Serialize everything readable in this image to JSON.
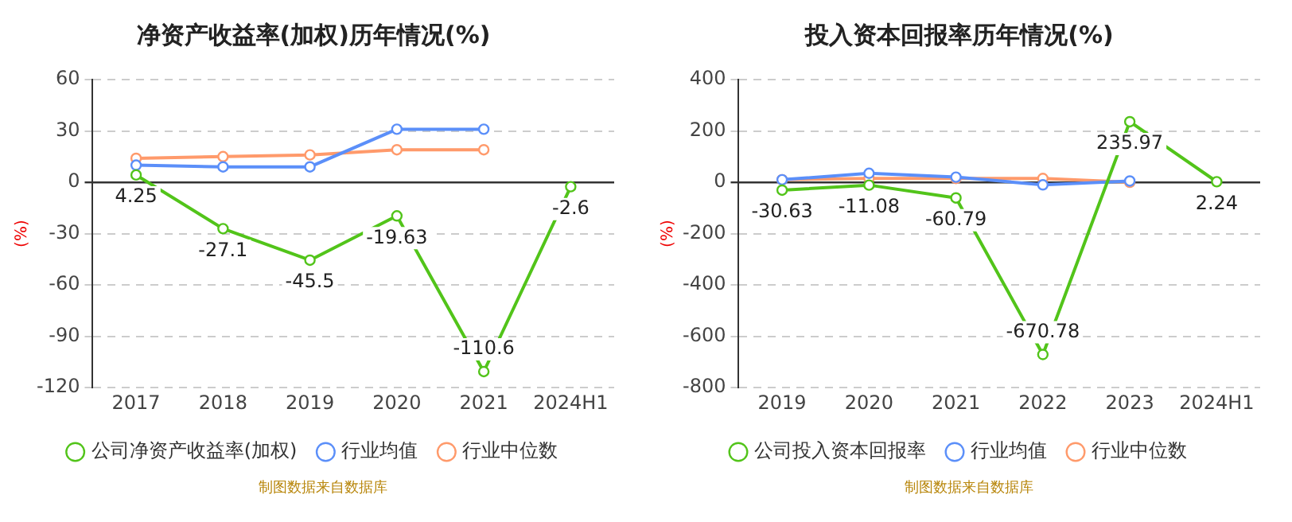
{
  "chart_data": [
    {
      "type": "line",
      "title": "净资产收益率(加权)历年情况(%)",
      "ylabel": "(%)",
      "categories": [
        "2017",
        "2018",
        "2019",
        "2020",
        "2021",
        "2024H1"
      ],
      "series": [
        {
          "name": "公司净资产收益率(加权)",
          "color": "#52c41a",
          "values": [
            4.25,
            -27.1,
            -45.5,
            -19.63,
            -110.6,
            -2.6
          ],
          "value_labels": [
            "4.25",
            "-27.1",
            "-45.5",
            "-19.63",
            "-110.6",
            "-2.6"
          ]
        },
        {
          "name": "行业均值",
          "color": "#5b8ff9",
          "values": [
            10,
            9,
            9,
            31,
            31,
            null
          ]
        },
        {
          "name": "行业中位数",
          "color": "#ff9a6b",
          "values": [
            14,
            15,
            16,
            19,
            19,
            null
          ]
        }
      ],
      "ylim": [
        -120,
        60
      ],
      "yticks": [
        -120,
        -90,
        -60,
        -30,
        0,
        30,
        60
      ],
      "grid": "y",
      "legend": "bottom",
      "marker": "circle",
      "annotations": [
        "制图数据来自数据库"
      ]
    },
    {
      "type": "line",
      "title": "投入资本回报率历年情况(%)",
      "ylabel": "(%)",
      "categories": [
        "2019",
        "2020",
        "2021",
        "2022",
        "2023",
        "2024H1"
      ],
      "series": [
        {
          "name": "公司投入资本回报率",
          "color": "#52c41a",
          "values": [
            -30.63,
            -11.08,
            -60.79,
            -670.78,
            235.97,
            2.24
          ],
          "value_labels": [
            "-30.63",
            "-11.08",
            "-60.79",
            "-670.78",
            "235.97",
            "2.24"
          ]
        },
        {
          "name": "行业均值",
          "color": "#5b8ff9",
          "values": [
            10,
            35,
            20,
            -10,
            5,
            null
          ]
        },
        {
          "name": "行业中位数",
          "color": "#ff9a6b",
          "values": [
            10,
            15,
            15,
            15,
            0,
            null
          ]
        }
      ],
      "ylim": [
        -800,
        400
      ],
      "yticks": [
        -800,
        -600,
        -400,
        -200,
        0,
        200,
        400
      ],
      "grid": "y",
      "legend": "bottom",
      "marker": "circle",
      "annotations": [
        "制图数据来自数据库"
      ]
    }
  ]
}
